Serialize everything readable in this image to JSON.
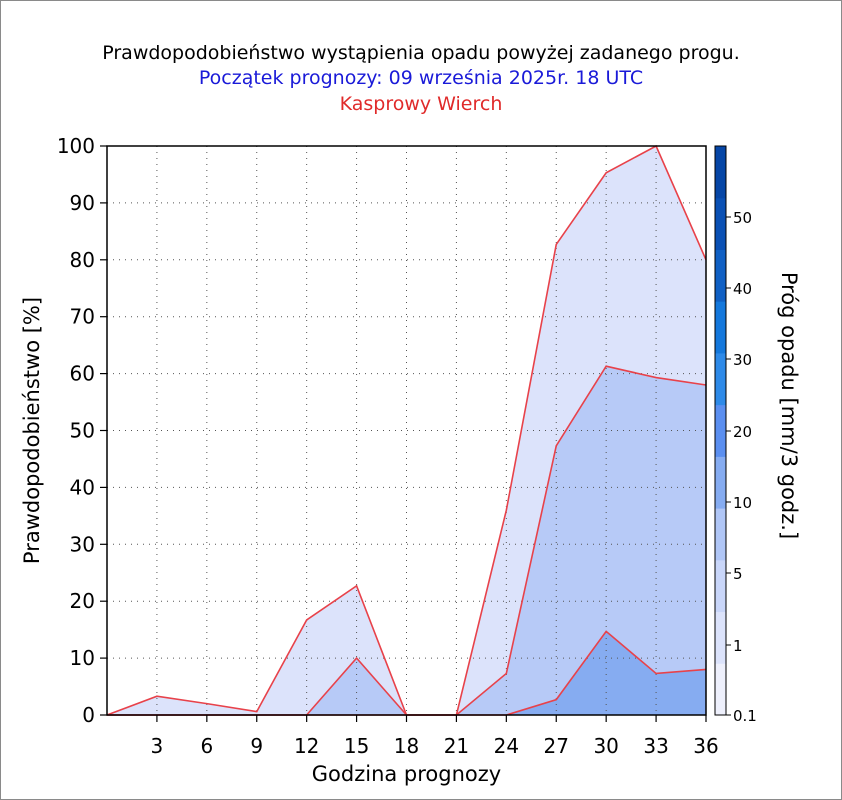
{
  "chart_data": {
    "type": "area",
    "title": "Prawdopodobieństwo wystąpienia opadu powyżej zadanego progu.",
    "subtitle": "Początek prognozy: 09 września 2025r. 18 UTC",
    "subtitle2": "Kasprowy Wierch",
    "xlabel": "Godzina prognozy",
    "ylabel": "Prawdopodobieństwo [%]",
    "xlim": [
      0,
      36
    ],
    "ylim": [
      0,
      100
    ],
    "xticks": [
      3,
      6,
      9,
      12,
      15,
      18,
      21,
      24,
      27,
      30,
      33,
      36
    ],
    "yticks": [
      0,
      10,
      20,
      30,
      40,
      50,
      60,
      70,
      80,
      90,
      100
    ],
    "grid": true,
    "x": [
      0,
      3,
      6,
      9,
      12,
      15,
      18,
      21,
      24,
      27,
      30,
      33,
      36
    ],
    "series": [
      {
        "threshold": "0.1",
        "color": "#dce3fb",
        "values": [
          0,
          3.3,
          2,
          0.6,
          16.7,
          22.7,
          0,
          0,
          36,
          82.7,
          95.3,
          100,
          80
        ]
      },
      {
        "threshold": "1",
        "color": "#b7caf7",
        "values": [
          0,
          0,
          0,
          0,
          0,
          10,
          0,
          0,
          7.3,
          47.3,
          61.3,
          59.3,
          58
        ]
      },
      {
        "threshold": "5",
        "color": "#86acf1",
        "values": [
          0,
          0,
          0,
          0,
          0,
          0,
          0,
          0,
          0,
          2.7,
          14.7,
          7.3,
          8
        ]
      }
    ],
    "line_color": "#e8424a",
    "colorbar": {
      "label": "Próg opadu [mm/3 godz.]",
      "ticks": [
        "0.1",
        "1",
        "5",
        "10",
        "20",
        "30",
        "40",
        "50"
      ],
      "colors": [
        "#eef0fc",
        "#dce3fb",
        "#c9d6f9",
        "#b0c6f6",
        "#86acf1",
        "#5b8ff0",
        "#2e8ae8",
        "#1478dc",
        "#1060c4",
        "#0a50b4",
        "#0646a6"
      ]
    }
  }
}
